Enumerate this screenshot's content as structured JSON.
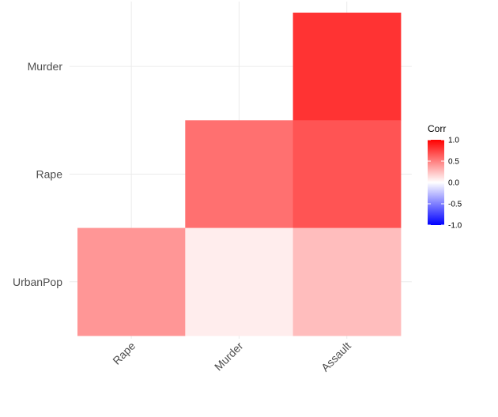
{
  "chart_data": {
    "type": "heatmap",
    "x_categories": [
      "Rape",
      "Murder",
      "Assault"
    ],
    "y_categories": [
      "Murder",
      "Rape",
      "UrbanPop"
    ],
    "cells": [
      {
        "x": "Assault",
        "y": "Murder",
        "value": 0.8
      },
      {
        "x": "Murder",
        "y": "Rape",
        "value": 0.56
      },
      {
        "x": "Assault",
        "y": "Rape",
        "value": 0.67
      },
      {
        "x": "Rape",
        "y": "UrbanPop",
        "value": 0.41
      },
      {
        "x": "Murder",
        "y": "UrbanPop",
        "value": 0.07
      },
      {
        "x": "Assault",
        "y": "UrbanPop",
        "value": 0.26
      }
    ],
    "legend": {
      "title": "Corr",
      "range": [
        -1,
        1
      ],
      "breaks": [
        1.0,
        0.5,
        0.0,
        -0.5,
        -1.0
      ],
      "labels": [
        "1.0",
        "0.5",
        "0.0",
        "-0.5",
        "-1.0"
      ],
      "colors": {
        "low": "#0000ff",
        "mid": "#ffffff",
        "high": "#ff0000"
      }
    },
    "x_tick_rotation_deg": 45,
    "grid": true,
    "legend_position": "right"
  }
}
